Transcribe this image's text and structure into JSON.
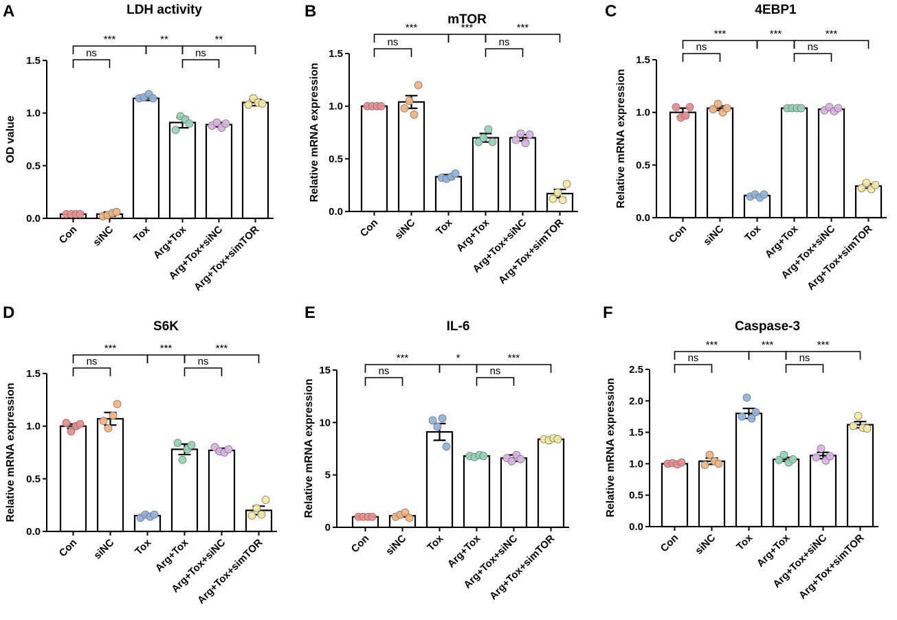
{
  "figure": {
    "group_colors": [
      "#f08a8c",
      "#f5b37a",
      "#8db4df",
      "#8fd6b6",
      "#dcb3e6",
      "#f5ea9a"
    ]
  },
  "chart_data": [
    {
      "panel": "A",
      "type": "bar",
      "title": "LDH activity",
      "xlabel": "",
      "ylabel": "OD value",
      "ylim": [
        0,
        1.5
      ],
      "yticks": [
        "0.0",
        "0.5",
        "1.0",
        "1.5"
      ],
      "categories": [
        "Con",
        "siNC",
        "Tox",
        "Arg+Tox",
        "Arg+Tox+siNC",
        "Arg+Tox+simTOR"
      ],
      "values": [
        0.04,
        0.04,
        1.14,
        0.91,
        0.89,
        1.1
      ],
      "errors": [
        0.0,
        0.02,
        0.02,
        0.05,
        0.02,
        0.03
      ],
      "points": [
        [
          0.04,
          0.04,
          0.04,
          0.04
        ],
        [
          0.02,
          0.03,
          0.05,
          0.06
        ],
        [
          1.14,
          1.15,
          1.18,
          1.14
        ],
        [
          0.84,
          0.97,
          0.94,
          0.9
        ],
        [
          0.88,
          0.91,
          0.86,
          0.9
        ],
        [
          1.08,
          1.14,
          1.1,
          1.09
        ]
      ],
      "significance": [
        {
          "from": 0,
          "to": 1,
          "label": "ns"
        },
        {
          "from": 0,
          "to": 2,
          "label": "***"
        },
        {
          "from": 2,
          "to": 3,
          "label": "**"
        },
        {
          "from": 3,
          "to": 4,
          "label": "ns"
        },
        {
          "from": 3,
          "to": 5,
          "label": "**"
        }
      ]
    },
    {
      "panel": "B",
      "type": "bar",
      "title": "mTOR",
      "xlabel": "",
      "ylabel": "Relative mRNA expression",
      "ylim": [
        0,
        1.5
      ],
      "yticks": [
        "0.0",
        "0.5",
        "1.0",
        "1.5"
      ],
      "categories": [
        "Con",
        "siNC",
        "Tox",
        "Arg+Tox",
        "Arg+Tox+siNC",
        "Arg+Tox+simTOR"
      ],
      "values": [
        1.0,
        1.04,
        0.33,
        0.7,
        0.7,
        0.17
      ],
      "errors": [
        0.0,
        0.06,
        0.02,
        0.04,
        0.03,
        0.04
      ],
      "points": [
        [
          1.0,
          1.0,
          1.0,
          1.0
        ],
        [
          0.98,
          1.05,
          0.92,
          1.2
        ],
        [
          0.32,
          0.31,
          0.33,
          0.36
        ],
        [
          0.66,
          0.7,
          0.78,
          0.66
        ],
        [
          0.68,
          0.74,
          0.65,
          0.73
        ],
        [
          0.12,
          0.18,
          0.11,
          0.26
        ]
      ],
      "significance": [
        {
          "from": 0,
          "to": 1,
          "label": "ns"
        },
        {
          "from": 0,
          "to": 2,
          "label": "***"
        },
        {
          "from": 2,
          "to": 3,
          "label": "***"
        },
        {
          "from": 3,
          "to": 4,
          "label": "ns"
        },
        {
          "from": 3,
          "to": 5,
          "label": "***"
        }
      ]
    },
    {
      "panel": "C",
      "type": "bar",
      "title": "4EBP1",
      "xlabel": "",
      "ylabel": "Relative mRNA expression",
      "ylim": [
        0,
        1.5
      ],
      "yticks": [
        "0.0",
        "0.5",
        "1.0",
        "1.5"
      ],
      "categories": [
        "Con",
        "siNC",
        "Tox",
        "Arg+Tox",
        "Arg+Tox+siNC",
        "Arg+Tox+simTOR"
      ],
      "values": [
        1.0,
        1.04,
        0.21,
        1.04,
        1.03,
        0.3
      ],
      "errors": [
        0.04,
        0.02,
        0.01,
        0.01,
        0.01,
        0.02
      ],
      "points": [
        [
          1.05,
          0.95,
          0.97,
          1.05
        ],
        [
          1.03,
          1.08,
          1.0,
          1.04
        ],
        [
          0.2,
          0.22,
          0.19,
          0.22
        ],
        [
          1.04,
          1.04,
          1.04,
          1.04
        ],
        [
          1.02,
          1.05,
          1.01,
          1.04
        ],
        [
          0.28,
          0.33,
          0.27,
          0.31
        ]
      ],
      "significance": [
        {
          "from": 0,
          "to": 1,
          "label": "ns"
        },
        {
          "from": 0,
          "to": 2,
          "label": "***"
        },
        {
          "from": 2,
          "to": 3,
          "label": "***"
        },
        {
          "from": 3,
          "to": 4,
          "label": "ns"
        },
        {
          "from": 3,
          "to": 5,
          "label": "***"
        }
      ]
    },
    {
      "panel": "D",
      "type": "bar",
      "title": "S6K",
      "xlabel": "",
      "ylabel": "Relative mRNA expression",
      "ylim": [
        0,
        1.5
      ],
      "yticks": [
        "0.0",
        "0.5",
        "1.0",
        "1.5"
      ],
      "categories": [
        "Con",
        "siNC",
        "Tox",
        "Arg+Tox",
        "Arg+Tox+siNC",
        "Arg+Tox+simTOR"
      ],
      "values": [
        1.0,
        1.07,
        0.15,
        0.78,
        0.77,
        0.2
      ],
      "errors": [
        0.02,
        0.06,
        0.01,
        0.05,
        0.02,
        0.04
      ],
      "points": [
        [
          1.03,
          0.95,
          1.0,
          1.02
        ],
        [
          1.05,
          0.98,
          1.1,
          1.21
        ],
        [
          0.13,
          0.16,
          0.14,
          0.16
        ],
        [
          0.84,
          0.68,
          0.78,
          0.82
        ],
        [
          0.8,
          0.76,
          0.75,
          0.78
        ],
        [
          0.15,
          0.22,
          0.16,
          0.3
        ]
      ],
      "significance": [
        {
          "from": 0,
          "to": 1,
          "label": "ns"
        },
        {
          "from": 0,
          "to": 2,
          "label": "***"
        },
        {
          "from": 2,
          "to": 3,
          "label": "***"
        },
        {
          "from": 3,
          "to": 4,
          "label": "ns"
        },
        {
          "from": 3,
          "to": 5,
          "label": "***"
        }
      ]
    },
    {
      "panel": "E",
      "type": "bar",
      "title": "IL-6",
      "xlabel": "",
      "ylabel": "Relative mRNA expression",
      "ylim": [
        0,
        15
      ],
      "yticks": [
        "0",
        "5",
        "10",
        "15"
      ],
      "categories": [
        "Con",
        "siNC",
        "Tox",
        "Arg+Tox",
        "Arg+Tox+siNC",
        "Arg+Tox+simTOR"
      ],
      "values": [
        1.0,
        1.1,
        9.1,
        6.8,
        6.6,
        8.4
      ],
      "errors": [
        0.0,
        0.1,
        0.8,
        0.1,
        0.3,
        0.1
      ],
      "points": [
        [
          1.0,
          1.0,
          1.0,
          1.0
        ],
        [
          1.0,
          1.2,
          1.4,
          0.9
        ],
        [
          10.2,
          9.6,
          10.4,
          7.7
        ],
        [
          6.8,
          6.7,
          6.9,
          6.8
        ],
        [
          6.6,
          6.3,
          6.9,
          6.5
        ],
        [
          8.4,
          8.3,
          8.5,
          8.4
        ]
      ],
      "significance": [
        {
          "from": 0,
          "to": 1,
          "label": "ns"
        },
        {
          "from": 0,
          "to": 2,
          "label": "***"
        },
        {
          "from": 2,
          "to": 3,
          "label": "*"
        },
        {
          "from": 3,
          "to": 4,
          "label": "ns"
        },
        {
          "from": 3,
          "to": 5,
          "label": "***"
        }
      ]
    },
    {
      "panel": "F",
      "type": "bar",
      "title": "Caspase-3",
      "xlabel": "",
      "ylabel": "Relative mRNA expression",
      "ylim": [
        0,
        2.5
      ],
      "yticks": [
        "0.0",
        "0.5",
        "1.0",
        "1.5",
        "2.0",
        "2.5"
      ],
      "categories": [
        "Con",
        "siNC",
        "Tox",
        "Arg+Tox",
        "Arg+Tox+siNC",
        "Arg+Tox+simTOR"
      ],
      "values": [
        1.0,
        1.04,
        1.8,
        1.07,
        1.13,
        1.62
      ],
      "errors": [
        0.01,
        0.05,
        0.08,
        0.03,
        0.05,
        0.05
      ],
      "points": [
        [
          1.0,
          1.01,
          0.99,
          1.02
        ],
        [
          0.98,
          1.14,
          1.04,
          1.0
        ],
        [
          1.75,
          2.05,
          1.72,
          1.82
        ],
        [
          1.06,
          1.14,
          1.02,
          1.07
        ],
        [
          1.1,
          1.24,
          1.05,
          1.12
        ],
        [
          1.6,
          1.76,
          1.57,
          1.56
        ]
      ],
      "significance": [
        {
          "from": 0,
          "to": 1,
          "label": "ns"
        },
        {
          "from": 0,
          "to": 2,
          "label": "***"
        },
        {
          "from": 2,
          "to": 3,
          "label": "***"
        },
        {
          "from": 3,
          "to": 4,
          "label": "ns"
        },
        {
          "from": 3,
          "to": 5,
          "label": "***"
        }
      ]
    }
  ]
}
